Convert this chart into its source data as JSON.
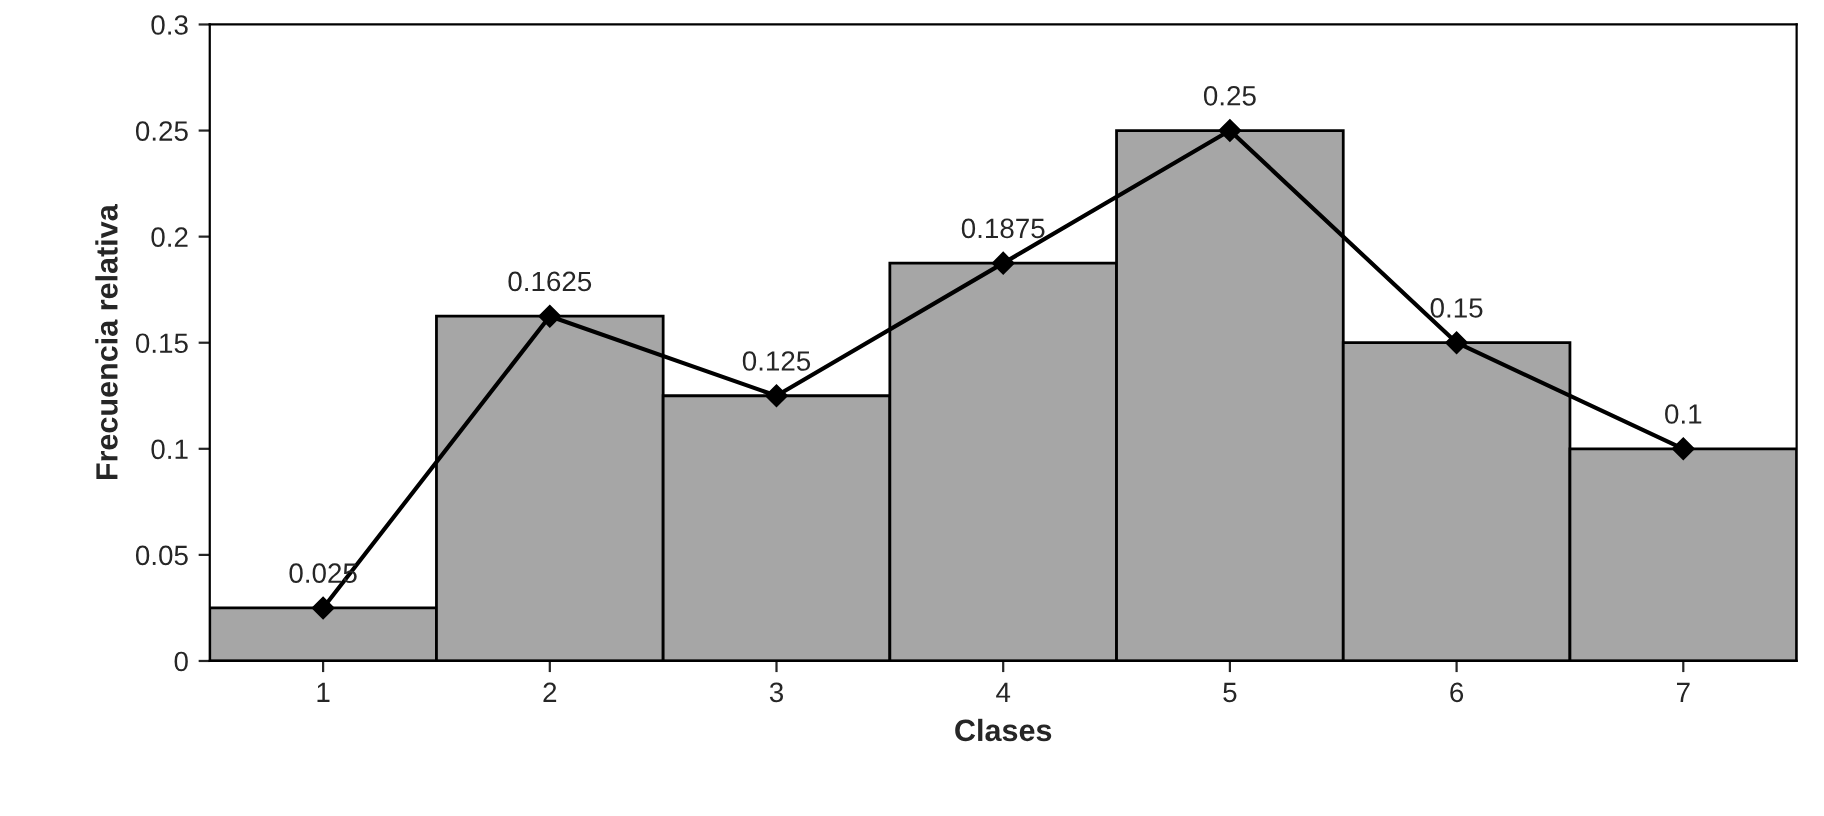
{
  "chart_data": {
    "type": "bar",
    "xlabel": "Clases",
    "ylabel": "Frecuencia relativa",
    "categories": [
      "1",
      "2",
      "3",
      "4",
      "5",
      "6",
      "7"
    ],
    "series": [
      {
        "color": "#a6a6a6",
        "values": [
          0.025,
          0.1625,
          0.125,
          0.1875,
          0.25,
          0.15,
          0.1
        ]
      },
      {
        "type": "line",
        "color": "#000000",
        "marker": "diamond",
        "values": [
          0.025,
          0.1625,
          0.125,
          0.1875,
          0.25,
          0.15,
          0.1
        ],
        "value_labels": [
          "0.025",
          "0.1625",
          "0.125",
          "0.1875",
          "0.25",
          "0.15",
          "0.1"
        ]
      }
    ],
    "ylim": [
      0,
      0.3
    ],
    "yticks": [
      0,
      0.05,
      0.1,
      0.15,
      0.2,
      0.25,
      0.3
    ],
    "grid": false,
    "legend": false
  }
}
